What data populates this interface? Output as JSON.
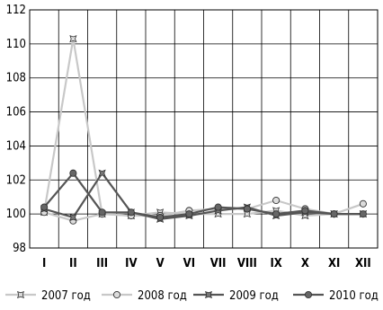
{
  "chart_data": {
    "type": "line",
    "title": "",
    "xlabel": "",
    "ylabel": "",
    "categories": [
      "I",
      "II",
      "III",
      "IV",
      "V",
      "VI",
      "VII",
      "VIII",
      "IX",
      "X",
      "XI",
      "XII"
    ],
    "ylim": [
      98,
      112
    ],
    "yticks": [
      98,
      100,
      102,
      104,
      106,
      108,
      110,
      112
    ],
    "grid": true,
    "legend_position": "bottom",
    "series": [
      {
        "name": "2007 год",
        "marker": "star",
        "line_color": "#c8c8c8",
        "marker_fill": "#dcdcdc",
        "values": [
          100.1,
          110.3,
          100.0,
          99.9,
          100.1,
          100.0,
          100.0,
          100.0,
          100.2,
          99.9,
          100.0,
          100.0
        ]
      },
      {
        "name": "2008 год",
        "marker": "circle",
        "line_color": "#c8c8c8",
        "marker_fill": "#dcdcdc",
        "values": [
          100.1,
          99.6,
          100.0,
          99.9,
          99.9,
          100.2,
          100.3,
          100.3,
          100.8,
          100.3,
          100.0,
          100.6
        ]
      },
      {
        "name": "2009 год",
        "marker": "star",
        "line_color": "#555555",
        "marker_fill": "#777777",
        "values": [
          100.3,
          99.8,
          102.4,
          100.1,
          99.7,
          99.9,
          100.2,
          100.4,
          99.9,
          100.1,
          100.0,
          100.0
        ]
      },
      {
        "name": "2010 год",
        "marker": "circle",
        "line_color": "#555555",
        "marker_fill": "#666666",
        "values": [
          100.4,
          102.4,
          100.1,
          100.1,
          99.8,
          100.0,
          100.4,
          100.3,
          100.0,
          100.2,
          100.0,
          100.0
        ]
      }
    ]
  }
}
